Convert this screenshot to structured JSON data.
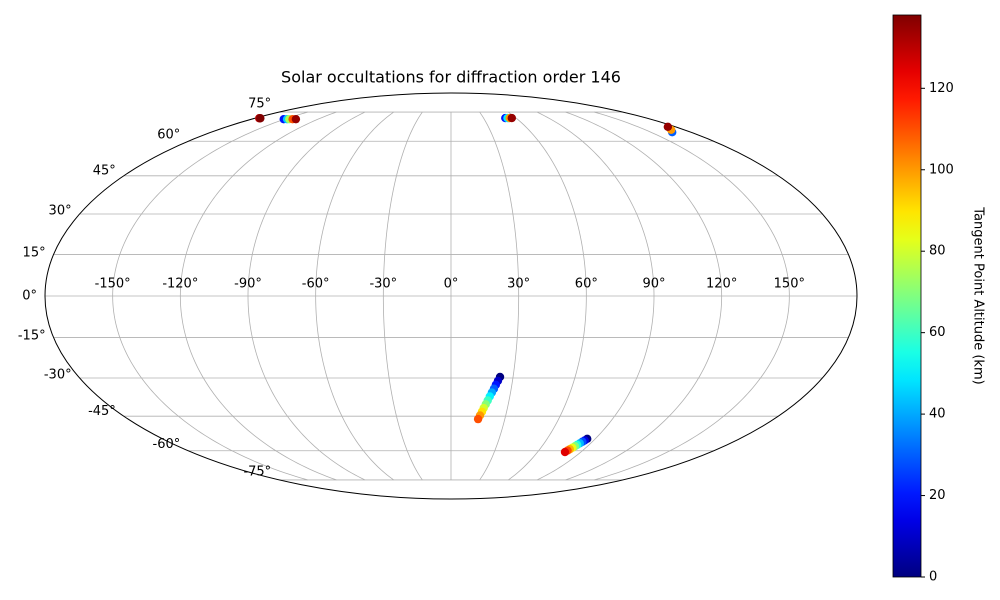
{
  "chart_data": {
    "type": "scatter",
    "projection": "mollweide",
    "title": "Solar occultations for diffraction order 146",
    "colorbar_label": "Tangent Point Altitude (km)",
    "colormap": "jet",
    "clim": [
      0,
      138
    ],
    "cticks": [
      0,
      20,
      40,
      60,
      80,
      100,
      120
    ],
    "grid": true,
    "xlim": [
      -180,
      180
    ],
    "ylim": [
      -90,
      90
    ],
    "xticks": [
      {
        "value": -150,
        "label": "-150°"
      },
      {
        "value": -120,
        "label": "-120°"
      },
      {
        "value": -90,
        "label": "-90°"
      },
      {
        "value": -60,
        "label": "-60°"
      },
      {
        "value": -30,
        "label": "-30°"
      },
      {
        "value": 0,
        "label": "0°"
      },
      {
        "value": 30,
        "label": "30°"
      },
      {
        "value": 60,
        "label": "60°"
      },
      {
        "value": 90,
        "label": "90°"
      },
      {
        "value": 120,
        "label": "120°"
      },
      {
        "value": 150,
        "label": "150°"
      }
    ],
    "yticks": [
      {
        "value": -75,
        "label": "-75°"
      },
      {
        "value": -60,
        "label": "-60°"
      },
      {
        "value": -45,
        "label": "-45°"
      },
      {
        "value": -30,
        "label": "-30°"
      },
      {
        "value": -15,
        "label": "-15°"
      },
      {
        "value": 0,
        "label": "0°"
      },
      {
        "value": 15,
        "label": "15°"
      },
      {
        "value": 30,
        "label": "30°"
      },
      {
        "value": 45,
        "label": "45°"
      },
      {
        "value": 60,
        "label": "60°"
      },
      {
        "value": 75,
        "label": "75°"
      }
    ],
    "x": [
      23.7,
      22.9,
      22.1,
      21.4,
      20.6,
      19.8,
      19.0,
      18.2,
      17.4,
      16.7,
      15.9,
      15.1,
      85,
      84.3,
      83.7,
      83,
      82.3,
      81.7,
      81,
      80.3,
      79.7,
      79,
      -151,
      -148,
      -146,
      -143,
      -140,
      -176,
      -175,
      50,
      52,
      54,
      56,
      166,
      170,
      174
    ],
    "y": [
      -29.6,
      -31.1,
      -32.6,
      -34.1,
      -35.6,
      -37.1,
      -38.7,
      -40.2,
      -41.7,
      -43.2,
      -44.7,
      -46.2,
      -54.6,
      -55.3,
      -55.9,
      -56.6,
      -57.3,
      -57.9,
      -58.6,
      -59.3,
      -59.9,
      -60.6,
      71,
      71,
      71,
      71,
      71,
      71.5,
      71.5,
      71.6,
      71.6,
      71.6,
      71.6,
      64.3,
      65.5,
      67
    ],
    "c": [
      0,
      10,
      20,
      30,
      40,
      50,
      60,
      70,
      80,
      90,
      100,
      110,
      0,
      14,
      28,
      42,
      56,
      69,
      83,
      97,
      111,
      125,
      20,
      45,
      75,
      110,
      135,
      130,
      138,
      20,
      50,
      100,
      135,
      30,
      100,
      135
    ]
  }
}
